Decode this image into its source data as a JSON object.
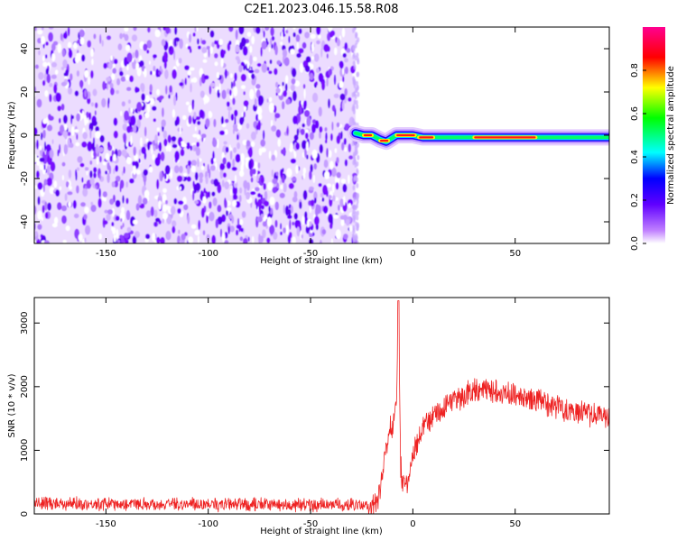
{
  "figure": {
    "title": "C2E1.2023.046.15.58.R08"
  },
  "chart_data": [
    {
      "type": "heatmap",
      "xlabel": "Height of straight line (km)",
      "ylabel": "Frequency (Hz)",
      "xlim": [
        -185,
        96
      ],
      "ylim": [
        -50,
        50
      ],
      "x_ticks": [
        "-150",
        "-100",
        "-50",
        "0",
        "50"
      ],
      "y_ticks": [
        "-40",
        "-20",
        "0",
        "20",
        "40"
      ],
      "noise_region_x": [
        -185,
        -28
      ],
      "signal_track": [
        {
          "x": -28,
          "y": 1
        },
        {
          "x": -24,
          "y": 0
        },
        {
          "x": -20,
          "y": 0
        },
        {
          "x": -16,
          "y": -2
        },
        {
          "x": -13,
          "y": -3
        },
        {
          "x": -8,
          "y": 0
        },
        {
          "x": 0,
          "y": 0
        },
        {
          "x": 5,
          "y": -1
        },
        {
          "x": 12,
          "y": -1
        },
        {
          "x": 30,
          "y": -1
        },
        {
          "x": 50,
          "y": -1
        },
        {
          "x": 96,
          "y": -1
        }
      ],
      "colorbar": {
        "label": "Normalized spectral amplitude",
        "range": [
          0,
          1
        ],
        "ticks": [
          "0.0",
          "0.2",
          "0.4",
          "0.6",
          "0.8"
        ],
        "colors": [
          "#ffffff",
          "#c080ff",
          "#6000ff",
          "#0000ff",
          "#00ffff",
          "#00ff00",
          "#ffff00",
          "#ff0000",
          "#ff0090"
        ]
      }
    },
    {
      "type": "line",
      "xlabel": "Height of straight line (km)",
      "ylabel": "SNR (10 * v/v)",
      "xlim": [
        -185,
        96
      ],
      "ylim": [
        0,
        3400
      ],
      "x_ticks": [
        "-150",
        "-100",
        "-50",
        "0",
        "50"
      ],
      "y_ticks": [
        "0",
        "1000",
        "2000",
        "3000"
      ],
      "color": "#ee2222",
      "series": [
        {
          "x": [
            -185,
            -150,
            -100,
            -50,
            -25,
            -18,
            -16,
            -14,
            -12,
            -10,
            -8,
            -7,
            -6,
            -4,
            -2,
            0,
            5,
            10,
            20,
            30,
            40,
            50,
            60,
            70,
            80,
            96
          ],
          "y": [
            170,
            160,
            150,
            140,
            130,
            150,
            350,
            900,
            1200,
            1400,
            1700,
            3350,
            700,
            450,
            500,
            900,
            1350,
            1550,
            1750,
            1950,
            1950,
            1850,
            1780,
            1700,
            1600,
            1520
          ]
        }
      ]
    }
  ]
}
